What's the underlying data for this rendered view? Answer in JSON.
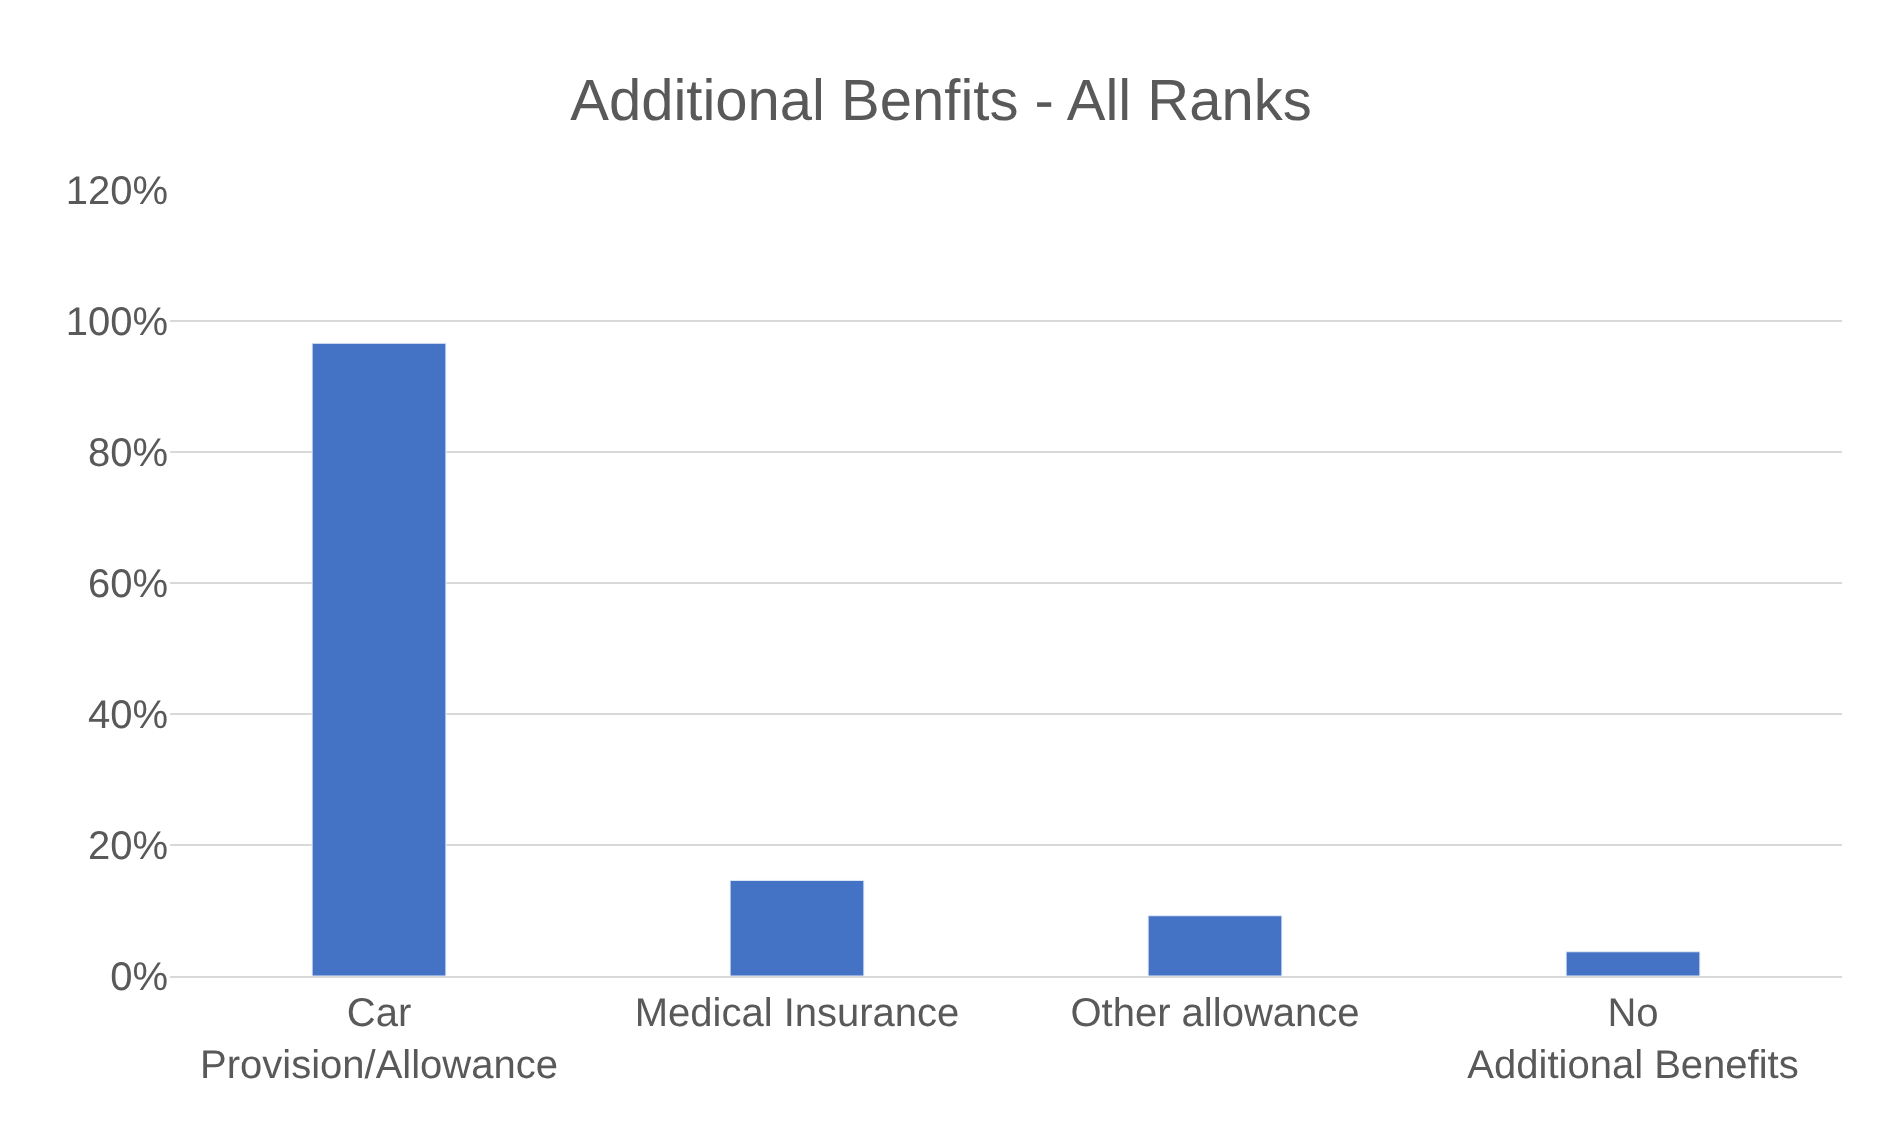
{
  "chart_data": {
    "type": "bar",
    "title": "Additional Benfits - All Ranks",
    "categories": [
      "Car Provision/Allowance",
      "Medical Insurance",
      "Other allowance",
      "No Additional Benefits"
    ],
    "values": [
      96.6,
      14.6,
      9.2,
      3.7
    ],
    "color": "#4472c4",
    "ylim": [
      0,
      120
    ],
    "yticks": [
      {
        "value": 0,
        "label": "0%"
      },
      {
        "value": 20,
        "label": "20%"
      },
      {
        "value": 40,
        "label": "40%"
      },
      {
        "value": 60,
        "label": "60%"
      },
      {
        "value": 80,
        "label": "80%"
      },
      {
        "value": 100,
        "label": "100%"
      },
      {
        "value": 120,
        "label": "120%"
      }
    ],
    "grid": "y"
  }
}
